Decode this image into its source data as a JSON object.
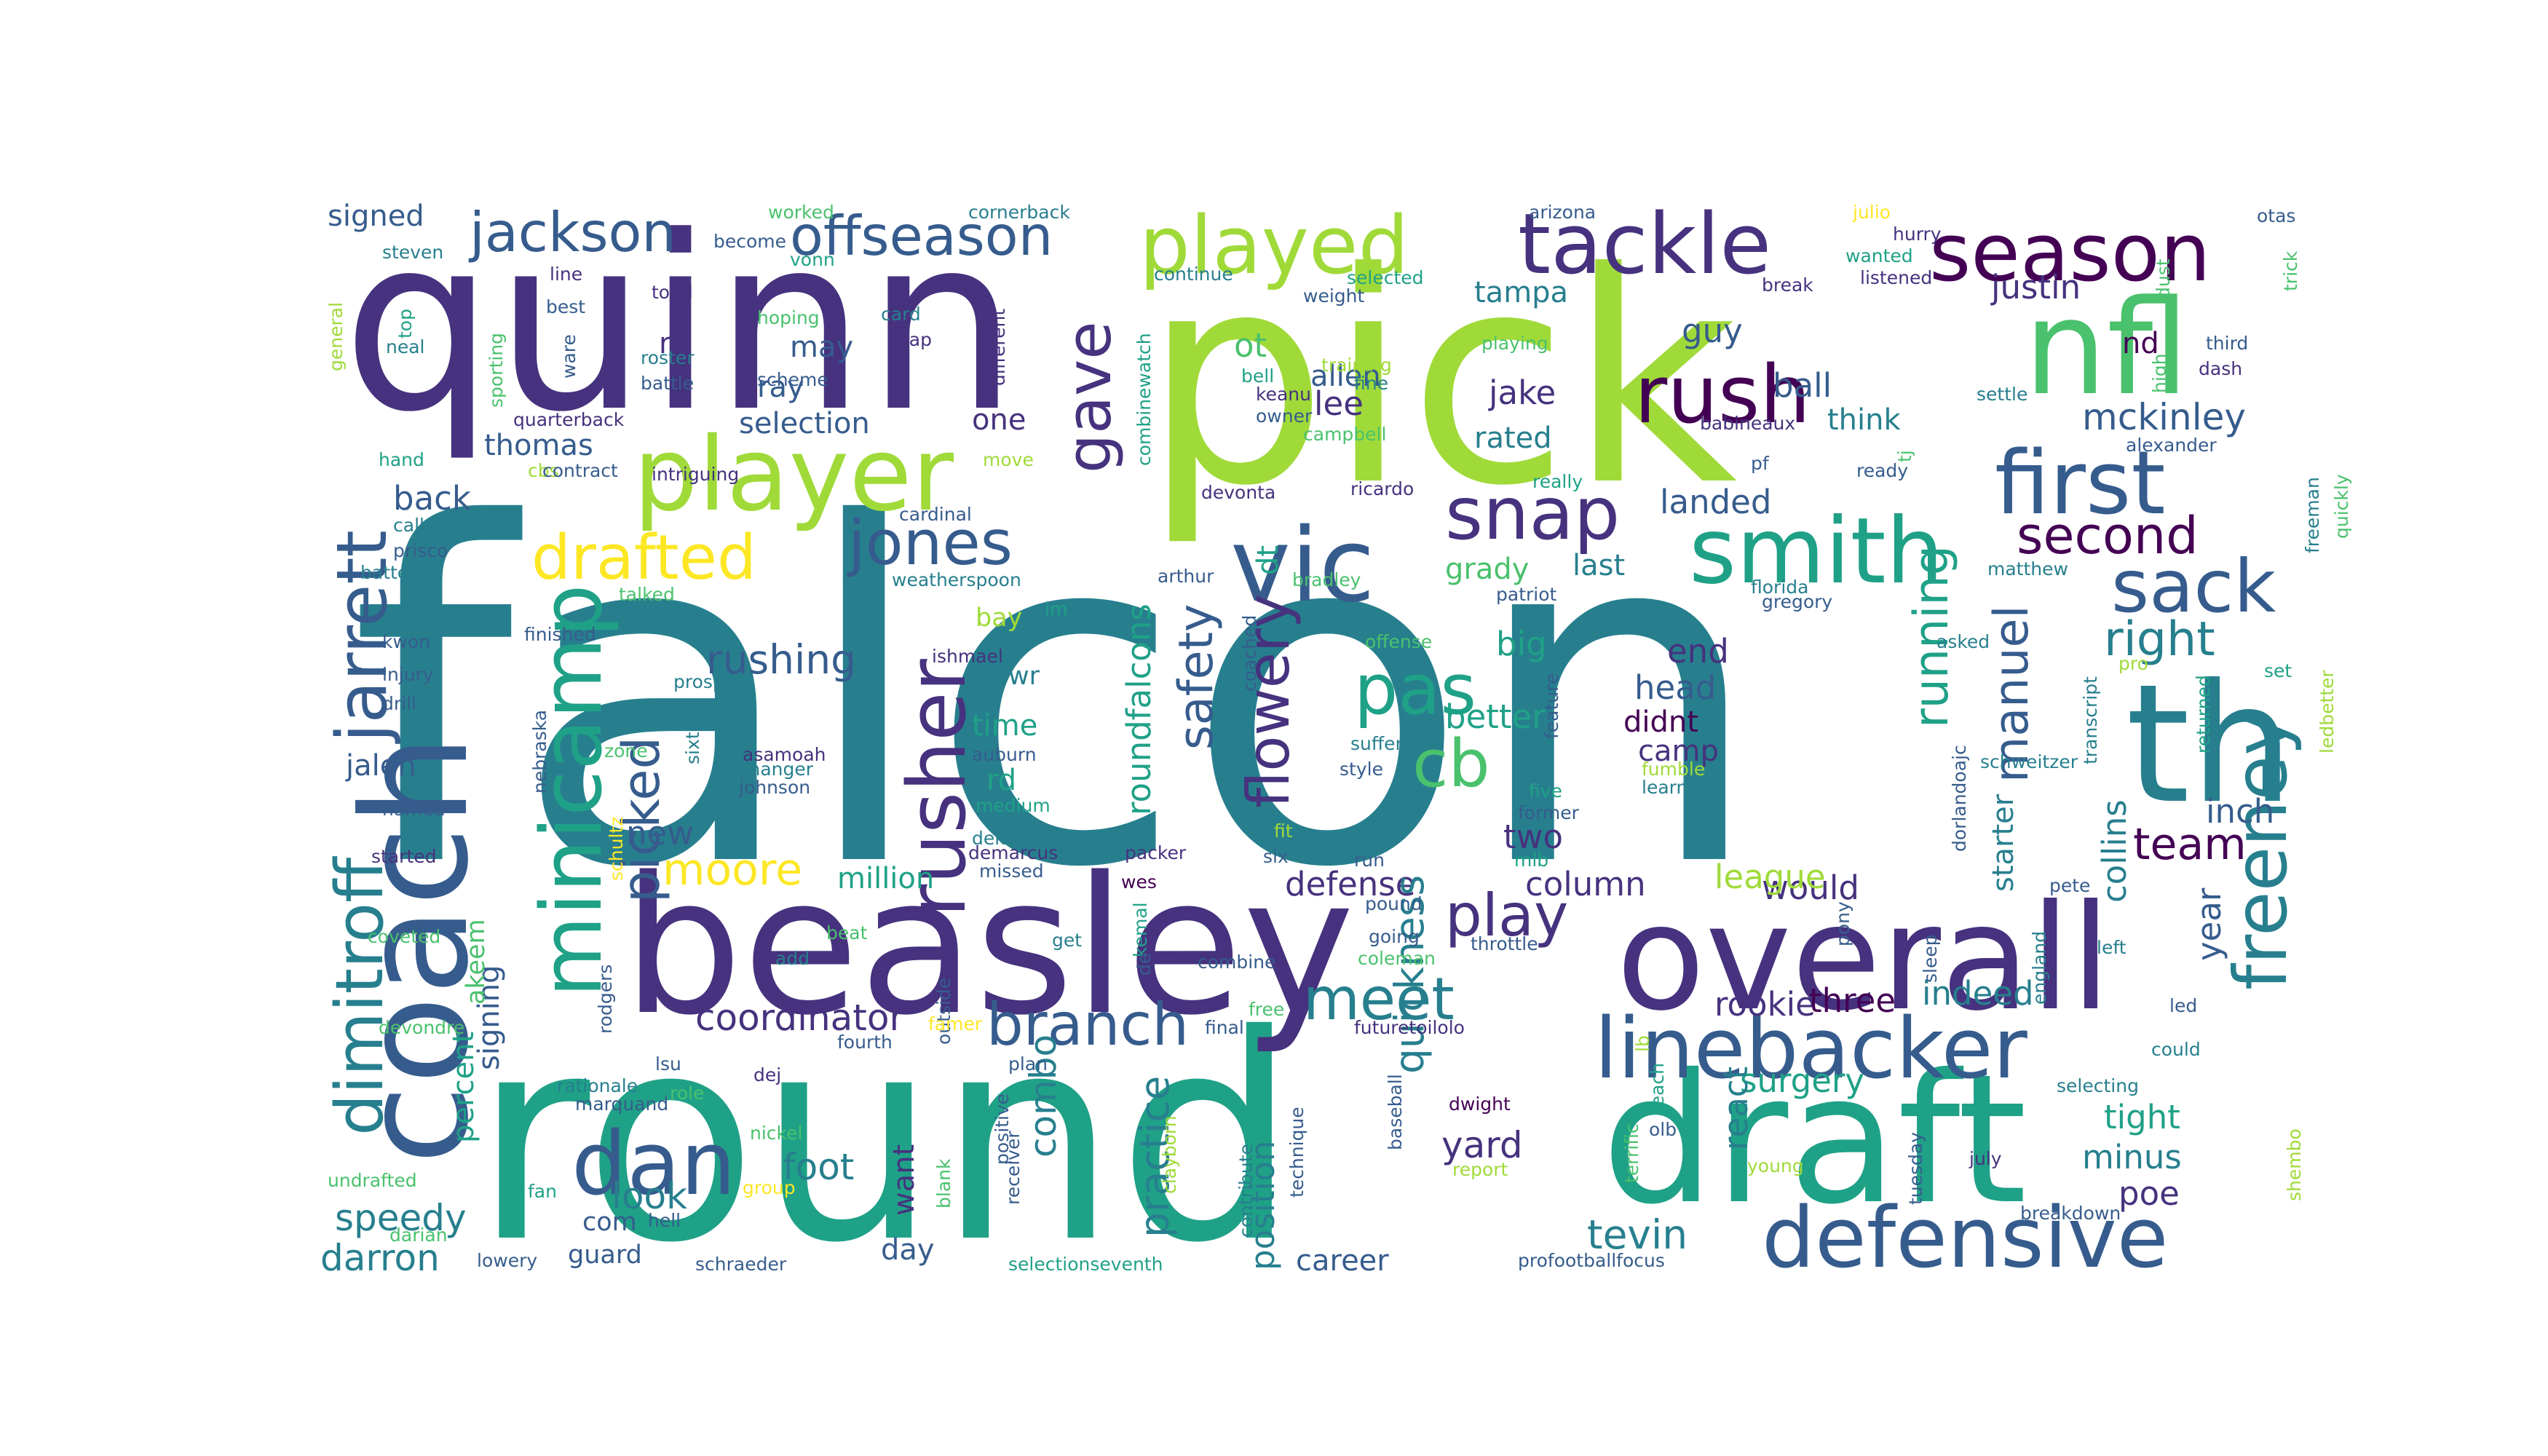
{
  "wordcloud": {
    "colors": {
      "c1": "#440154",
      "c2": "#46327e",
      "c3": "#365c8d",
      "c4": "#277f8e",
      "c5": "#1fa187",
      "c6": "#4ac16d",
      "c7": "#a0da39",
      "c8": "#fde725"
    },
    "words": [
      {
        "text": "falcon",
        "color": "c4"
      },
      {
        "text": "round",
        "color": "c5"
      },
      {
        "text": "pick",
        "color": "c7"
      },
      {
        "text": "quinn",
        "color": "c2"
      },
      {
        "text": "beasley",
        "color": "c2"
      },
      {
        "text": "overall",
        "color": "c2"
      },
      {
        "text": "draft",
        "color": "c5"
      },
      {
        "text": "th",
        "color": "c4"
      },
      {
        "text": "coach",
        "color": "c3"
      },
      {
        "text": "nfl",
        "color": "c6"
      },
      {
        "text": "linebacker",
        "color": "c3"
      },
      {
        "text": "defensive",
        "color": "c3"
      },
      {
        "text": "tackle",
        "color": "c2"
      },
      {
        "text": "player",
        "color": "c7"
      },
      {
        "text": "smith",
        "color": "c5"
      },
      {
        "text": "played",
        "color": "c7"
      },
      {
        "text": "vic",
        "color": "c3"
      },
      {
        "text": "season",
        "color": "c1"
      },
      {
        "text": "first",
        "color": "c3"
      },
      {
        "text": "snap",
        "color": "c2"
      },
      {
        "text": "rush",
        "color": "c1"
      },
      {
        "text": "sack",
        "color": "c3"
      },
      {
        "text": "jarrett",
        "color": "c3"
      },
      {
        "text": "dimitroff",
        "color": "c4"
      },
      {
        "text": "minicamp",
        "color": "c5"
      },
      {
        "text": "freeney",
        "color": "c4"
      },
      {
        "text": "drafted",
        "color": "c8"
      },
      {
        "text": "jones",
        "color": "c3"
      },
      {
        "text": "pas",
        "color": "c5"
      },
      {
        "text": "cb",
        "color": "c6"
      },
      {
        "text": "rusher",
        "color": "c2"
      },
      {
        "text": "dan",
        "color": "c3"
      },
      {
        "text": "offseason",
        "color": "c3"
      },
      {
        "text": "jackson",
        "color": "c3"
      },
      {
        "text": "gave",
        "color": "c2"
      },
      {
        "text": "meet",
        "color": "c4"
      },
      {
        "text": "branch",
        "color": "c3"
      },
      {
        "text": "play",
        "color": "c2"
      },
      {
        "text": "flowery",
        "color": "c2"
      },
      {
        "text": "second",
        "color": "c1"
      },
      {
        "text": "picked",
        "color": "c3"
      },
      {
        "text": "safety",
        "color": "c3"
      },
      {
        "text": "manuel",
        "color": "c3"
      },
      {
        "text": "running",
        "color": "c5"
      },
      {
        "text": "right",
        "color": "c4"
      },
      {
        "text": "team",
        "color": "c1"
      },
      {
        "text": "mckinley",
        "color": "c3"
      },
      {
        "text": "moore",
        "color": "c8"
      },
      {
        "text": "rushing",
        "color": "c3"
      },
      {
        "text": "defense",
        "color": "c2"
      },
      {
        "text": "quickness",
        "color": "c4"
      },
      {
        "text": "practice",
        "color": "c4"
      },
      {
        "text": "roundfalcons",
        "color": "c5"
      },
      {
        "text": "coordinator",
        "color": "c2"
      },
      {
        "text": "rookie",
        "color": "c2"
      },
      {
        "text": "tevin",
        "color": "c4"
      },
      {
        "text": "darron",
        "color": "c4"
      },
      {
        "text": "speedy",
        "color": "c4"
      },
      {
        "text": "combo",
        "color": "c4"
      },
      {
        "text": "collins",
        "color": "c4"
      },
      {
        "text": "yard",
        "color": "c2"
      },
      {
        "text": "foot",
        "color": "c4"
      },
      {
        "text": "look",
        "color": "c4"
      },
      {
        "text": "position",
        "color": "c4"
      },
      {
        "text": "would",
        "color": "c2"
      },
      {
        "text": "surgery",
        "color": "c5"
      },
      {
        "text": "react",
        "color": "c4"
      },
      {
        "text": "starter",
        "color": "c4"
      },
      {
        "text": "league",
        "color": "c7"
      },
      {
        "text": "column",
        "color": "c2"
      },
      {
        "text": "tight",
        "color": "c5"
      },
      {
        "text": "minus",
        "color": "c4"
      },
      {
        "text": "poe",
        "color": "c2"
      },
      {
        "text": "inch",
        "color": "c3"
      },
      {
        "text": "year",
        "color": "c3"
      },
      {
        "text": "three",
        "color": "c1"
      },
      {
        "text": "indeed",
        "color": "c4"
      },
      {
        "text": "end",
        "color": "c2"
      },
      {
        "text": "head",
        "color": "c3"
      },
      {
        "text": "didnt",
        "color": "c1"
      },
      {
        "text": "camp",
        "color": "c2"
      },
      {
        "text": "better",
        "color": "c5"
      },
      {
        "text": "two",
        "color": "c2"
      },
      {
        "text": "new",
        "color": "c3"
      },
      {
        "text": "big",
        "color": "c5"
      },
      {
        "text": "grady",
        "color": "c6"
      },
      {
        "text": "last",
        "color": "c4"
      },
      {
        "text": "landed",
        "color": "c3"
      },
      {
        "text": "rated",
        "color": "c4"
      },
      {
        "text": "jake",
        "color": "c2"
      },
      {
        "text": "lee",
        "color": "c2"
      },
      {
        "text": "allen",
        "color": "c3"
      },
      {
        "text": "ot",
        "color": "c6"
      },
      {
        "text": "dt",
        "color": "c5"
      },
      {
        "text": "tampa",
        "color": "c4"
      },
      {
        "text": "guy",
        "color": "c3"
      },
      {
        "text": "ball",
        "color": "c3"
      },
      {
        "text": "think",
        "color": "c4"
      },
      {
        "text": "justin",
        "color": "c2"
      },
      {
        "text": "nd",
        "color": "c1"
      },
      {
        "text": "thomas",
        "color": "c3"
      },
      {
        "text": "back",
        "color": "c3"
      },
      {
        "text": "jalen",
        "color": "c3"
      },
      {
        "text": "signed",
        "color": "c3"
      },
      {
        "text": "signing",
        "color": "c3"
      },
      {
        "text": "akeem",
        "color": "c6"
      },
      {
        "text": "percent",
        "color": "c5"
      },
      {
        "text": "selection",
        "color": "c3"
      },
      {
        "text": "one",
        "color": "c2"
      },
      {
        "text": "ray",
        "color": "c3"
      },
      {
        "text": "may",
        "color": "c3"
      },
      {
        "text": "rb",
        "color": "c2"
      },
      {
        "text": "million",
        "color": "c5"
      },
      {
        "text": "time",
        "color": "c5"
      },
      {
        "text": "rd",
        "color": "c5"
      },
      {
        "text": "wr",
        "color": "c4"
      },
      {
        "text": "bay",
        "color": "c7"
      },
      {
        "text": "want",
        "color": "c2"
      },
      {
        "text": "day",
        "color": "c3"
      },
      {
        "text": "guard",
        "color": "c3"
      },
      {
        "text": "com",
        "color": "c3"
      },
      {
        "text": "career",
        "color": "c3"
      },
      {
        "text": "worked",
        "color": "c6"
      },
      {
        "text": "cornerback",
        "color": "c4"
      },
      {
        "text": "arizona",
        "color": "c3"
      },
      {
        "text": "julio",
        "color": "c8"
      },
      {
        "text": "otas",
        "color": "c3"
      },
      {
        "text": "steven",
        "color": "c4"
      },
      {
        "text": "become",
        "color": "c3"
      },
      {
        "text": "vonn",
        "color": "c5"
      },
      {
        "text": "continue",
        "color": "c4"
      },
      {
        "text": "selected",
        "color": "c5"
      },
      {
        "text": "break",
        "color": "c2"
      },
      {
        "text": "hurry",
        "color": "c2"
      },
      {
        "text": "wanted",
        "color": "c5"
      },
      {
        "text": "listened",
        "color": "c2"
      },
      {
        "text": "trick",
        "color": "c6"
      },
      {
        "text": "line",
        "color": "c2"
      },
      {
        "text": "todd",
        "color": "c2"
      },
      {
        "text": "best",
        "color": "c3"
      },
      {
        "text": "hoping",
        "color": "c6"
      },
      {
        "text": "card",
        "color": "c4"
      },
      {
        "text": "cap",
        "color": "c2"
      },
      {
        "text": "weight",
        "color": "c3"
      },
      {
        "text": "dust",
        "color": "c6"
      },
      {
        "text": "third",
        "color": "c3"
      },
      {
        "text": "dash",
        "color": "c2"
      },
      {
        "text": "neal",
        "color": "c4"
      },
      {
        "text": "roster",
        "color": "c4"
      },
      {
        "text": "battle",
        "color": "c3"
      },
      {
        "text": "ware",
        "color": "c3"
      },
      {
        "text": "scheme",
        "color": "c3"
      },
      {
        "text": "different",
        "color": "c2"
      },
      {
        "text": "combinewatch",
        "color": "c5"
      },
      {
        "text": "bell",
        "color": "c5"
      },
      {
        "text": "keanu",
        "color": "c2"
      },
      {
        "text": "owner",
        "color": "c3"
      },
      {
        "text": "training",
        "color": "c7"
      },
      {
        "text": "fine",
        "color": "c4"
      },
      {
        "text": "campbell",
        "color": "c6"
      },
      {
        "text": "playing",
        "color": "c6"
      },
      {
        "text": "babineaux",
        "color": "c2"
      },
      {
        "text": "settle",
        "color": "c4"
      },
      {
        "text": "high",
        "color": "c6"
      },
      {
        "text": "alexander",
        "color": "c3"
      },
      {
        "text": "general",
        "color": "c7"
      },
      {
        "text": "top",
        "color": "c5"
      },
      {
        "text": "sporting",
        "color": "c6"
      },
      {
        "text": "quarterback",
        "color": "c2"
      },
      {
        "text": "hand",
        "color": "c5"
      },
      {
        "text": "cbs",
        "color": "c7"
      },
      {
        "text": "contract",
        "color": "c3"
      },
      {
        "text": "move",
        "color": "c7"
      },
      {
        "text": "intriguing",
        "color": "c2"
      },
      {
        "text": "cardinal",
        "color": "c3"
      },
      {
        "text": "devonta",
        "color": "c2"
      },
      {
        "text": "ricardo",
        "color": "c2"
      },
      {
        "text": "really",
        "color": "c5"
      },
      {
        "text": "pf",
        "color": "c3"
      },
      {
        "text": "tj",
        "color": "c6"
      },
      {
        "text": "ready",
        "color": "c3"
      },
      {
        "text": "quickly",
        "color": "c6"
      },
      {
        "text": "freeman",
        "color": "c4"
      },
      {
        "text": "call",
        "color": "c4"
      },
      {
        "text": "prisco",
        "color": "c3"
      },
      {
        "text": "batter",
        "color": "c4"
      },
      {
        "text": "weatherspoon",
        "color": "c4"
      },
      {
        "text": "arthur",
        "color": "c3"
      },
      {
        "text": "bradley",
        "color": "c6"
      },
      {
        "text": "patriot",
        "color": "c3"
      },
      {
        "text": "florida",
        "color": "c4"
      },
      {
        "text": "gregory",
        "color": "c3"
      },
      {
        "text": "matthew",
        "color": "c4"
      },
      {
        "text": "talked",
        "color": "c6"
      },
      {
        "text": "im",
        "color": "c5"
      },
      {
        "text": "kwon",
        "color": "c3"
      },
      {
        "text": "finished",
        "color": "c3"
      },
      {
        "text": "ishmael",
        "color": "c2"
      },
      {
        "text": "offense",
        "color": "c6"
      },
      {
        "text": "asked",
        "color": "c4"
      },
      {
        "text": "pro",
        "color": "c7"
      },
      {
        "text": "set",
        "color": "c5"
      },
      {
        "text": "injury",
        "color": "c3"
      },
      {
        "text": "drill",
        "color": "c3"
      },
      {
        "text": "prospect",
        "color": "c4"
      },
      {
        "text": "nebraska",
        "color": "c3"
      },
      {
        "text": "sixth",
        "color": "c4"
      },
      {
        "text": "coached",
        "color": "c3"
      },
      {
        "text": "feature",
        "color": "c3"
      },
      {
        "text": "transcript",
        "color": "c4"
      },
      {
        "text": "returned",
        "color": "c5"
      },
      {
        "text": "ledbetter",
        "color": "c7"
      },
      {
        "text": "zone",
        "color": "c6"
      },
      {
        "text": "asamoah",
        "color": "c2"
      },
      {
        "text": "manger",
        "color": "c4"
      },
      {
        "text": "johnson",
        "color": "c3"
      },
      {
        "text": "auburn",
        "color": "c3"
      },
      {
        "text": "medium",
        "color": "c5"
      },
      {
        "text": "suffered",
        "color": "c4"
      },
      {
        "text": "style",
        "color": "c3"
      },
      {
        "text": "five",
        "color": "c5"
      },
      {
        "text": "former",
        "color": "c3"
      },
      {
        "text": "learned",
        "color": "c4"
      },
      {
        "text": "fumble",
        "color": "c7"
      },
      {
        "text": "dorlandoajc",
        "color": "c3"
      },
      {
        "text": "schweitzer",
        "color": "c4"
      },
      {
        "text": "named",
        "color": "c3"
      },
      {
        "text": "schultz",
        "color": "c8"
      },
      {
        "text": "dek",
        "color": "c4"
      },
      {
        "text": "fit",
        "color": "c7"
      },
      {
        "text": "demarcus",
        "color": "c2"
      },
      {
        "text": "missed",
        "color": "c3"
      },
      {
        "text": "packer",
        "color": "c2"
      },
      {
        "text": "wes",
        "color": "c1"
      },
      {
        "text": "six",
        "color": "c3"
      },
      {
        "text": "run",
        "color": "c3"
      },
      {
        "text": "mlb",
        "color": "c5"
      },
      {
        "text": "pete",
        "color": "c3"
      },
      {
        "text": "led",
        "color": "c3"
      },
      {
        "text": "started",
        "color": "c2"
      },
      {
        "text": "coveted",
        "color": "c6"
      },
      {
        "text": "rodgers",
        "color": "c3"
      },
      {
        "text": "beat",
        "color": "c6"
      },
      {
        "text": "add",
        "color": "c4"
      },
      {
        "text": "get",
        "color": "c4"
      },
      {
        "text": "outside",
        "color": "c3"
      },
      {
        "text": "kemal",
        "color": "c5"
      },
      {
        "text": "de",
        "color": "c3"
      },
      {
        "text": "combine",
        "color": "c3"
      },
      {
        "text": "pound",
        "color": "c3"
      },
      {
        "text": "going",
        "color": "c3"
      },
      {
        "text": "coleman",
        "color": "c6"
      },
      {
        "text": "throttle",
        "color": "c3"
      },
      {
        "text": "pony",
        "color": "c3"
      },
      {
        "text": "sleep",
        "color": "c3"
      },
      {
        "text": "england",
        "color": "c4"
      },
      {
        "text": "left",
        "color": "c4"
      },
      {
        "text": "could",
        "color": "c4"
      },
      {
        "text": "devondre",
        "color": "c6"
      },
      {
        "text": "fourth",
        "color": "c3"
      },
      {
        "text": "famer",
        "color": "c8"
      },
      {
        "text": "free",
        "color": "c6"
      },
      {
        "text": "final",
        "color": "c3"
      },
      {
        "text": "futuretoilolo",
        "color": "c2"
      },
      {
        "text": "lb",
        "color": "c7"
      },
      {
        "text": "lsu",
        "color": "c3"
      },
      {
        "text": "role",
        "color": "c6"
      },
      {
        "text": "rationale",
        "color": "c4"
      },
      {
        "text": "marquand",
        "color": "c3"
      },
      {
        "text": "dej",
        "color": "c2"
      },
      {
        "text": "plan",
        "color": "c3"
      },
      {
        "text": "baseball",
        "color": "c3"
      },
      {
        "text": "dwight",
        "color": "c1"
      },
      {
        "text": "reach",
        "color": "c5"
      },
      {
        "text": "olb",
        "color": "c3"
      },
      {
        "text": "selecting",
        "color": "c4"
      },
      {
        "text": "nickel",
        "color": "c6"
      },
      {
        "text": "positive",
        "color": "c3"
      },
      {
        "text": "receiver",
        "color": "c3"
      },
      {
        "text": "clayborn",
        "color": "c7"
      },
      {
        "text": "group",
        "color": "c8"
      },
      {
        "text": "blank",
        "color": "c6"
      },
      {
        "text": "contribute",
        "color": "c4"
      },
      {
        "text": "technique",
        "color": "c3"
      },
      {
        "text": "report",
        "color": "c7"
      },
      {
        "text": "terrific",
        "color": "c6"
      },
      {
        "text": "tuesday",
        "color": "c3"
      },
      {
        "text": "young",
        "color": "c7"
      },
      {
        "text": "july",
        "color": "c2"
      },
      {
        "text": "shembo",
        "color": "c7"
      },
      {
        "text": "undrafted",
        "color": "c6"
      },
      {
        "text": "fan",
        "color": "c5"
      },
      {
        "text": "hell",
        "color": "c3"
      },
      {
        "text": "darian",
        "color": "c6"
      },
      {
        "text": "lowery",
        "color": "c3"
      },
      {
        "text": "schraeder",
        "color": "c3"
      },
      {
        "text": "selectionseventh",
        "color": "c5"
      },
      {
        "text": "profootballfocus",
        "color": "c3"
      },
      {
        "text": "breakdown",
        "color": "c3"
      }
    ]
  }
}
